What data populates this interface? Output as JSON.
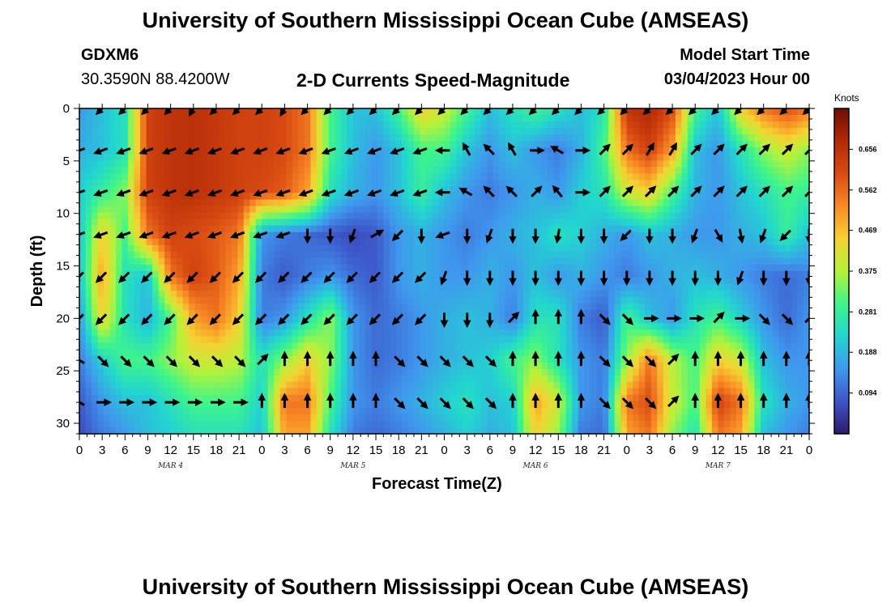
{
  "header": {
    "title": "University of Southern Mississippi Ocean Cube (AMSEAS)",
    "station_id": "GDXM6",
    "coords": "30.3590N  88.4200W",
    "subtitle": "2-D Currents Speed-Magnitude",
    "model_start_label": "Model Start Time",
    "model_start_value": "03/04/2023 Hour 00",
    "footer_title": "University of Southern Mississippi Ocean Cube (AMSEAS)"
  },
  "colors": {
    "ramp": [
      "#2b1a6b",
      "#3e55c8",
      "#3f98ee",
      "#22d5d0",
      "#3ef58a",
      "#b6f23a",
      "#f5d232",
      "#f98a26",
      "#d94a12",
      "#b22a06",
      "#6e0c03"
    ]
  },
  "chart_data": {
    "type": "heatmap",
    "xlabel": "Forecast Time(Z)",
    "ylabel": "Depth (ft)",
    "x_range": [
      0,
      96
    ],
    "y_range": [
      0,
      31
    ],
    "y_ticks": [
      0,
      5,
      10,
      15,
      20,
      25,
      30
    ],
    "x_tick_labels": [
      "0",
      "3",
      "6",
      "9",
      "12",
      "15",
      "18",
      "21",
      "0",
      "3",
      "6",
      "9",
      "12",
      "15",
      "18",
      "21",
      "0",
      "3",
      "6",
      "9",
      "12",
      "15",
      "18",
      "21",
      "0",
      "3",
      "6",
      "9",
      "12",
      "15",
      "18",
      "21",
      "0"
    ],
    "day_labels": [
      {
        "hour": 12,
        "label": "MAR 4"
      },
      {
        "hour": 36,
        "label": "MAR 5"
      },
      {
        "hour": 60,
        "label": "MAR 6"
      },
      {
        "hour": 84,
        "label": "MAR 7"
      }
    ],
    "colorbar": {
      "unit": "Knots",
      "min": 0.0,
      "max": 0.75,
      "tick_values": [
        0.094,
        0.188,
        0.281,
        0.375,
        0.469,
        0.562,
        0.656
      ],
      "tick_labels": [
        "0.094",
        "0.188",
        "0.281",
        "0.375",
        "0.469",
        "0.562",
        "0.656"
      ]
    },
    "speed_knots": {
      "hours": [
        0,
        3,
        6,
        9,
        12,
        15,
        18,
        21,
        24,
        27,
        30,
        33,
        36,
        39,
        42,
        45,
        48,
        51,
        54,
        57,
        60,
        63,
        66,
        69,
        72,
        75,
        78,
        81,
        84,
        87,
        90,
        93,
        96
      ],
      "depths_ft": [
        0,
        4,
        8,
        12,
        16,
        20,
        24,
        28,
        31
      ],
      "values": [
        [
          0.15,
          0.2,
          0.25,
          0.62,
          0.65,
          0.66,
          0.64,
          0.62,
          0.62,
          0.6,
          0.55,
          0.3,
          0.2,
          0.2,
          0.3,
          0.45,
          0.4,
          0.3,
          0.2,
          0.25,
          0.3,
          0.25,
          0.2,
          0.25,
          0.65,
          0.68,
          0.6,
          0.3,
          0.2,
          0.45,
          0.55,
          0.6,
          0.55
        ],
        [
          0.18,
          0.2,
          0.25,
          0.62,
          0.65,
          0.66,
          0.64,
          0.62,
          0.62,
          0.6,
          0.55,
          0.3,
          0.2,
          0.15,
          0.2,
          0.3,
          0.3,
          0.2,
          0.15,
          0.2,
          0.15,
          0.12,
          0.18,
          0.3,
          0.55,
          0.62,
          0.5,
          0.2,
          0.15,
          0.25,
          0.35,
          0.4,
          0.35
        ],
        [
          0.22,
          0.28,
          0.35,
          0.62,
          0.65,
          0.66,
          0.64,
          0.62,
          0.6,
          0.58,
          0.5,
          0.25,
          0.18,
          0.15,
          0.2,
          0.28,
          0.2,
          0.15,
          0.12,
          0.15,
          0.18,
          0.15,
          0.22,
          0.25,
          0.4,
          0.45,
          0.3,
          0.18,
          0.15,
          0.2,
          0.25,
          0.3,
          0.28
        ],
        [
          0.2,
          0.45,
          0.3,
          0.55,
          0.62,
          0.6,
          0.58,
          0.55,
          0.15,
          0.12,
          0.1,
          0.08,
          0.06,
          0.08,
          0.15,
          0.18,
          0.15,
          0.12,
          0.15,
          0.18,
          0.2,
          0.25,
          0.22,
          0.18,
          0.15,
          0.2,
          0.18,
          0.15,
          0.15,
          0.18,
          0.2,
          0.28,
          0.2
        ],
        [
          0.2,
          0.5,
          0.25,
          0.2,
          0.55,
          0.62,
          0.58,
          0.5,
          0.12,
          0.08,
          0.12,
          0.15,
          0.1,
          0.08,
          0.15,
          0.18,
          0.15,
          0.15,
          0.18,
          0.15,
          0.2,
          0.15,
          0.18,
          0.15,
          0.12,
          0.15,
          0.18,
          0.2,
          0.18,
          0.15,
          0.12,
          0.1,
          0.12
        ],
        [
          0.15,
          0.45,
          0.25,
          0.18,
          0.3,
          0.5,
          0.55,
          0.45,
          0.12,
          0.15,
          0.25,
          0.35,
          0.15,
          0.1,
          0.12,
          0.15,
          0.18,
          0.2,
          0.18,
          0.12,
          0.25,
          0.25,
          0.12,
          0.08,
          0.3,
          0.2,
          0.15,
          0.25,
          0.3,
          0.22,
          0.15,
          0.1,
          0.15
        ],
        [
          0.12,
          0.22,
          0.3,
          0.3,
          0.35,
          0.4,
          0.4,
          0.38,
          0.25,
          0.35,
          0.45,
          0.35,
          0.15,
          0.1,
          0.12,
          0.15,
          0.18,
          0.2,
          0.22,
          0.3,
          0.35,
          0.25,
          0.15,
          0.12,
          0.35,
          0.55,
          0.38,
          0.3,
          0.45,
          0.4,
          0.2,
          0.15,
          0.15
        ],
        [
          0.08,
          0.15,
          0.2,
          0.2,
          0.25,
          0.3,
          0.3,
          0.3,
          0.22,
          0.55,
          0.55,
          0.3,
          0.15,
          0.12,
          0.15,
          0.18,
          0.22,
          0.25,
          0.2,
          0.22,
          0.5,
          0.4,
          0.15,
          0.12,
          0.55,
          0.6,
          0.4,
          0.3,
          0.62,
          0.55,
          0.25,
          0.18,
          0.15
        ],
        [
          0.06,
          0.12,
          0.15,
          0.2,
          0.22,
          0.25,
          0.25,
          0.25,
          0.2,
          0.5,
          0.5,
          0.25,
          0.12,
          0.1,
          0.12,
          0.15,
          0.18,
          0.22,
          0.18,
          0.2,
          0.45,
          0.35,
          0.12,
          0.1,
          0.5,
          0.55,
          0.35,
          0.25,
          0.55,
          0.5,
          0.2,
          0.15,
          0.12
        ]
      ]
    },
    "current_arrows_deg": {
      "hours": [
        0,
        3,
        6,
        9,
        12,
        15,
        18,
        21,
        24,
        27,
        30,
        33,
        36,
        39,
        42,
        45,
        48,
        51,
        54,
        57,
        60,
        63,
        66,
        69,
        72,
        75,
        78,
        81,
        84,
        87,
        90,
        93,
        96
      ],
      "depths_ft": [
        0,
        4,
        8,
        12,
        16,
        20,
        24,
        28
      ],
      "direction_deg": [
        [
          225,
          225,
          225,
          225,
          225,
          210,
          225,
          225,
          225,
          210,
          225,
          225,
          225,
          225,
          225,
          225,
          225,
          225,
          225,
          225,
          225,
          225,
          225,
          225,
          225,
          225,
          225,
          225,
          225,
          225,
          225,
          225,
          225
        ],
        [
          250,
          250,
          250,
          250,
          250,
          250,
          250,
          250,
          250,
          250,
          250,
          250,
          250,
          250,
          250,
          250,
          270,
          330,
          315,
          330,
          90,
          300,
          90,
          45,
          45,
          30,
          30,
          45,
          45,
          45,
          45,
          45,
          45
        ],
        [
          250,
          250,
          250,
          250,
          250,
          250,
          250,
          250,
          250,
          250,
          250,
          250,
          250,
          250,
          250,
          250,
          270,
          300,
          315,
          315,
          45,
          320,
          90,
          45,
          45,
          45,
          45,
          45,
          45,
          45,
          45,
          45,
          45
        ],
        [
          250,
          250,
          250,
          250,
          250,
          250,
          250,
          250,
          250,
          250,
          180,
          180,
          200,
          60,
          225,
          180,
          250,
          180,
          200,
          180,
          180,
          190,
          180,
          180,
          225,
          180,
          180,
          200,
          150,
          170,
          200,
          225,
          180
        ],
        [
          225,
          225,
          225,
          225,
          225,
          225,
          225,
          225,
          225,
          225,
          225,
          225,
          225,
          225,
          225,
          225,
          200,
          180,
          180,
          180,
          180,
          180,
          180,
          180,
          180,
          180,
          180,
          180,
          180,
          200,
          180,
          180,
          180
        ],
        [
          225,
          225,
          225,
          225,
          225,
          225,
          225,
          225,
          225,
          225,
          225,
          225,
          225,
          225,
          225,
          225,
          180,
          180,
          180,
          45,
          0,
          0,
          0,
          135,
          135,
          90,
          90,
          90,
          45,
          90,
          135,
          135,
          45
        ],
        [
          300,
          135,
          135,
          135,
          135,
          135,
          135,
          135,
          45,
          0,
          0,
          0,
          0,
          0,
          135,
          135,
          135,
          135,
          135,
          0,
          0,
          0,
          0,
          135,
          135,
          135,
          45,
          0,
          0,
          0,
          0,
          0,
          0
        ],
        [
          300,
          90,
          90,
          90,
          90,
          90,
          90,
          90,
          0,
          0,
          0,
          0,
          0,
          0,
          135,
          135,
          135,
          135,
          135,
          0,
          0,
          0,
          0,
          135,
          135,
          135,
          45,
          0,
          0,
          0,
          0,
          0,
          0
        ]
      ]
    }
  }
}
